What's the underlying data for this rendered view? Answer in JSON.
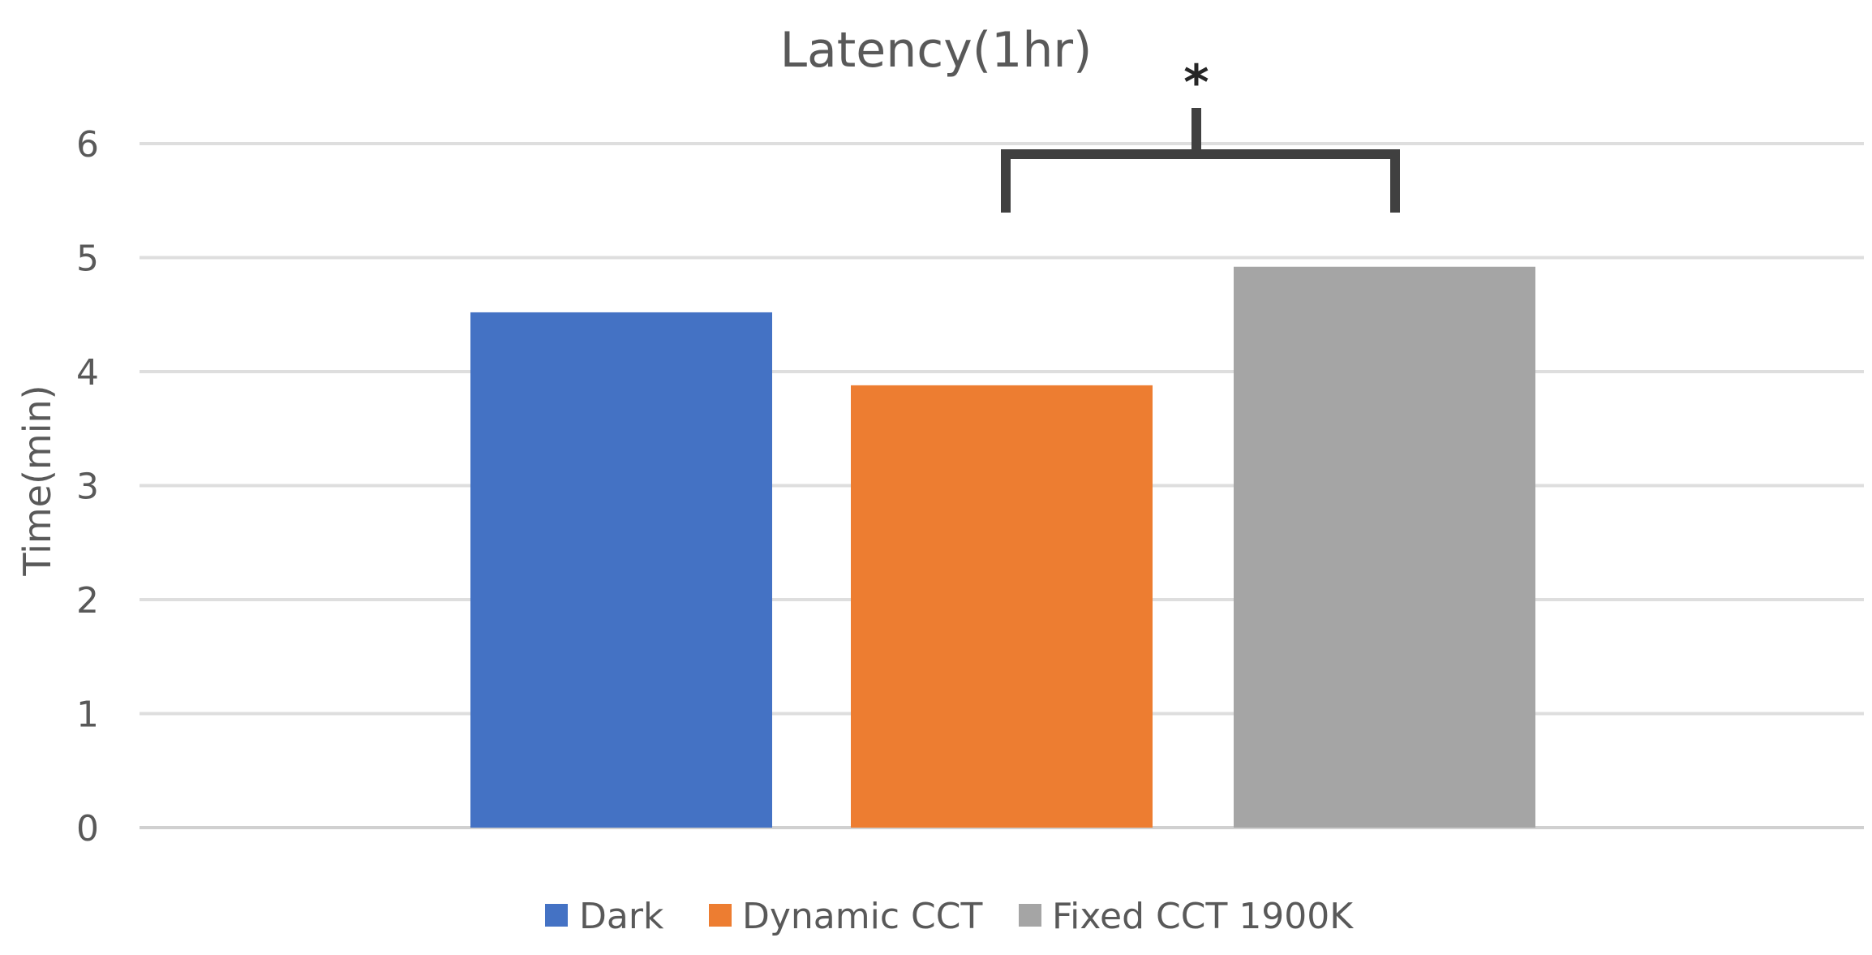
{
  "chart_data": {
    "type": "bar",
    "title": "Latency(1hr)",
    "xlabel": "",
    "ylabel": "Time(min)",
    "ylim": [
      0,
      6
    ],
    "yticks": [
      0,
      1,
      2,
      3,
      4,
      5,
      6
    ],
    "grid": true,
    "legend_position": "bottom",
    "series": [
      {
        "name": "Dark",
        "value": 4.52,
        "color": "#4472C4"
      },
      {
        "name": "Dynamic CCT",
        "value": 3.88,
        "color": "#ED7D31"
      },
      {
        "name": "Fixed CCT 1900K",
        "value": 4.92,
        "color": "#A5A5A5"
      }
    ],
    "annotations": [
      {
        "type": "significance-bracket",
        "text": "*",
        "between": [
          "Dynamic CCT",
          "Fixed CCT 1900K"
        ]
      }
    ]
  }
}
